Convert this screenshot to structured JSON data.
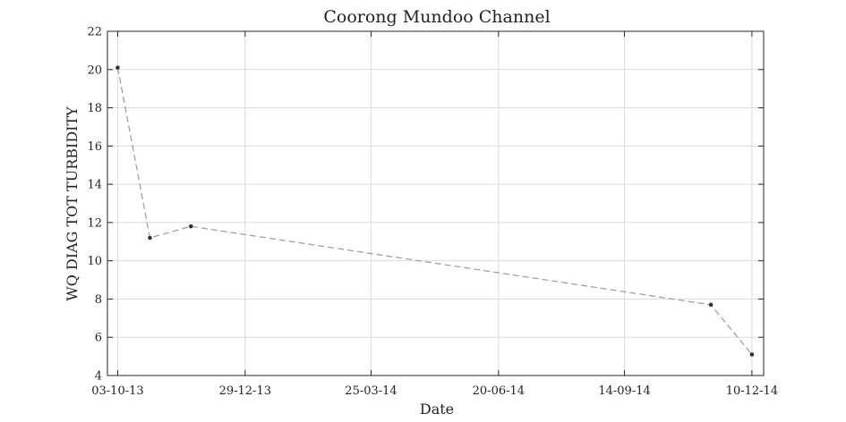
{
  "chart_data": {
    "type": "line",
    "title": "Coorong Mundoo Channel",
    "xlabel": "Date",
    "ylabel": "WQ DIAG TOT TURBIDITY",
    "x_type": "date",
    "xlim": [
      "2013-09-26",
      "2014-12-18"
    ],
    "ylim": [
      4,
      22
    ],
    "yticks": [
      4,
      6,
      8,
      10,
      12,
      14,
      16,
      18,
      20,
      22
    ],
    "xticks": [
      {
        "date": "2013-10-03",
        "label": "03-10-13"
      },
      {
        "date": "2013-12-29",
        "label": "29-12-13"
      },
      {
        "date": "2014-03-25",
        "label": "25-03-14"
      },
      {
        "date": "2014-06-20",
        "label": "20-06-14"
      },
      {
        "date": "2014-09-14",
        "label": "14-09-14"
      },
      {
        "date": "2014-12-10",
        "label": "10-12-14"
      }
    ],
    "grid": true,
    "legend": "none",
    "series": [
      {
        "x": [
          "2013-10-03",
          "2013-10-25",
          "2013-11-22",
          "2014-11-12",
          "2014-12-10"
        ],
        "y": [
          20.1,
          11.2,
          11.8,
          7.7,
          5.1
        ],
        "color": "#9a9a9a",
        "marker_color": "#333333",
        "line_style": "dashed"
      }
    ]
  }
}
